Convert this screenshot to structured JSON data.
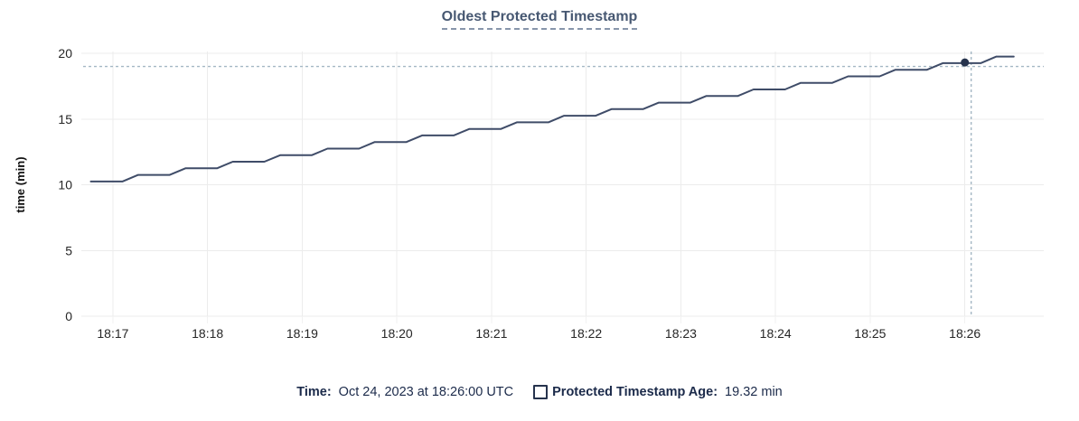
{
  "chart_data": {
    "type": "line",
    "title": "Oldest Protected Timestamp",
    "ylabel": "time (min)",
    "ylim": [
      0,
      20
    ],
    "y_ticks": [
      0,
      5,
      10,
      15,
      20
    ],
    "x_domain": {
      "start_label": "18:16:40",
      "duration_seconds": 610
    },
    "x_ticks": [
      {
        "t": 20,
        "label": "18:17"
      },
      {
        "t": 80,
        "label": "18:18"
      },
      {
        "t": 140,
        "label": "18:19"
      },
      {
        "t": 200,
        "label": "18:20"
      },
      {
        "t": 260,
        "label": "18:21"
      },
      {
        "t": 320,
        "label": "18:22"
      },
      {
        "t": 380,
        "label": "18:23"
      },
      {
        "t": 440,
        "label": "18:24"
      },
      {
        "t": 500,
        "label": "18:25"
      },
      {
        "t": 560,
        "label": "18:26"
      }
    ],
    "grid": true,
    "legend_position": "bottom",
    "series": [
      {
        "name": "Protected Timestamp Age",
        "color": "#3f4c68",
        "points": [
          [
            6,
            10.25
          ],
          [
            26,
            10.25
          ],
          [
            36,
            10.75
          ],
          [
            56,
            10.75
          ],
          [
            66,
            11.25
          ],
          [
            86,
            11.25
          ],
          [
            96,
            11.75
          ],
          [
            116,
            11.75
          ],
          [
            126,
            12.25
          ],
          [
            146,
            12.25
          ],
          [
            156,
            12.75
          ],
          [
            176,
            12.75
          ],
          [
            186,
            13.25
          ],
          [
            206,
            13.25
          ],
          [
            216,
            13.75
          ],
          [
            236,
            13.75
          ],
          [
            246,
            14.25
          ],
          [
            266,
            14.25
          ],
          [
            276,
            14.75
          ],
          [
            296,
            14.75
          ],
          [
            306,
            15.25
          ],
          [
            326,
            15.25
          ],
          [
            336,
            15.75
          ],
          [
            356,
            15.75
          ],
          [
            366,
            16.25
          ],
          [
            386,
            16.25
          ],
          [
            396,
            16.75
          ],
          [
            416,
            16.75
          ],
          [
            426,
            17.25
          ],
          [
            446,
            17.25
          ],
          [
            456,
            17.75
          ],
          [
            476,
            17.75
          ],
          [
            486,
            18.25
          ],
          [
            506,
            18.25
          ],
          [
            516,
            18.75
          ],
          [
            536,
            18.75
          ],
          [
            546,
            19.25
          ],
          [
            570,
            19.25
          ],
          [
            580,
            19.75
          ],
          [
            591,
            19.75
          ]
        ]
      }
    ],
    "crosshair": {
      "t": 564,
      "value": 19.0,
      "dot_t": 560,
      "dot_value": 19.3,
      "line_color": "#a4b7c4",
      "dot_color": "#26334d"
    },
    "grid_color": "#ececec",
    "minor_tick_color": "#f2f2f2",
    "axis_text_color": "#262626",
    "ylabel_color": "#111111"
  },
  "legend": {
    "time_label": "Time:",
    "time_value": "Oct 24, 2023 at 18:26:00 UTC",
    "series_label": "Protected Timestamp Age:",
    "series_value": "19.32 min",
    "checkbox_icon": "unchecked-square"
  }
}
